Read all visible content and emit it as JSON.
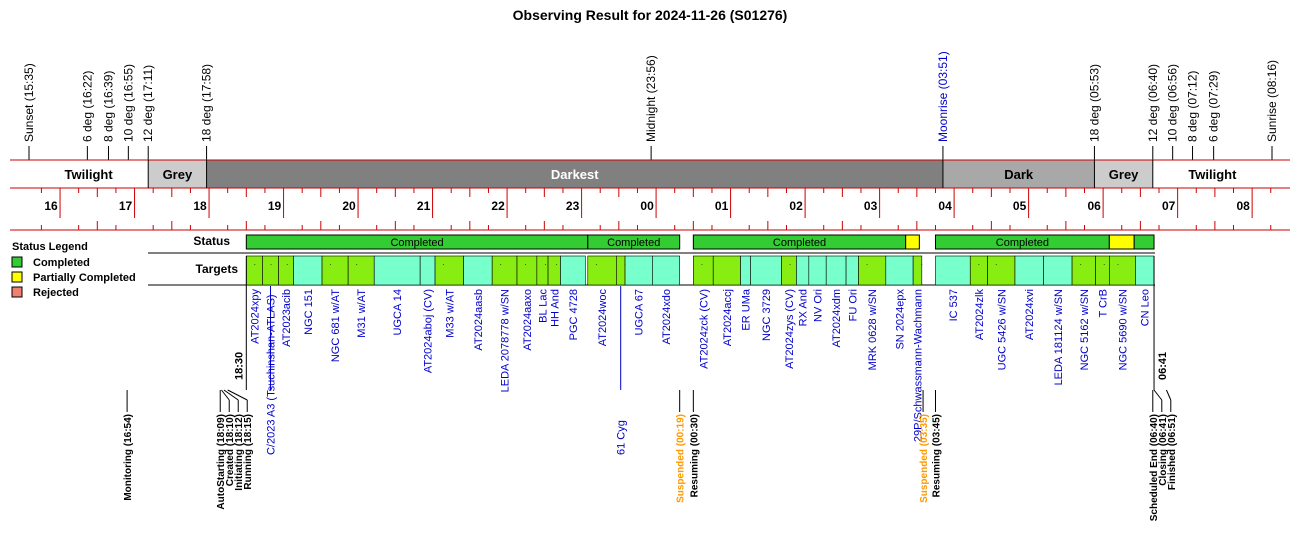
{
  "title": "Observing Result for 2024-11-26 (S01276)",
  "chart_data": {
    "type": "timeline",
    "title": "Observing Result for 2024-11-26 (S01276)",
    "x_axis": {
      "unit": "UT hour",
      "min": "15:35",
      "max": "08:16",
      "tick_labels": [
        "16",
        "17",
        "18",
        "19",
        "20",
        "21",
        "22",
        "23",
        "00",
        "01",
        "02",
        "03",
        "04",
        "05",
        "06",
        "07",
        "08"
      ]
    },
    "twilight_events": [
      {
        "label": "Sunset (15:35)",
        "time": "15:35"
      },
      {
        "label": "6 deg (16:22)",
        "time": "16:22"
      },
      {
        "label": "8 deg (16:39)",
        "time": "16:39"
      },
      {
        "label": "10 deg (16:55)",
        "time": "16:55"
      },
      {
        "label": "12 deg (17:11)",
        "time": "17:11"
      },
      {
        "label": "18 deg (17:58)",
        "time": "17:58"
      },
      {
        "label": "Midnight (23:56)",
        "time": "23:56"
      },
      {
        "label": "Moonrise (03:51)",
        "time": "03:51",
        "color": "#0000cc"
      },
      {
        "label": "18 deg (05:53)",
        "time": "05:53"
      },
      {
        "label": "12 deg (06:40)",
        "time": "06:40"
      },
      {
        "label": "10 deg (06:56)",
        "time": "06:56"
      },
      {
        "label": "8 deg (07:12)",
        "time": "07:12"
      },
      {
        "label": "6 deg (07:29)",
        "time": "07:29"
      },
      {
        "label": "Sunrise (08:16)",
        "time": "08:16"
      }
    ],
    "sky_bands": [
      {
        "label": "Twilight",
        "start": "15:35",
        "end": "17:11",
        "color": "#ffffff",
        "text_color": "#000000"
      },
      {
        "label": "Grey",
        "start": "17:11",
        "end": "17:58",
        "color": "#cccccc",
        "text_color": "#000000"
      },
      {
        "label": "Darkest",
        "start": "17:58",
        "end": "03:51",
        "color": "#808080",
        "text_color": "#ffffff"
      },
      {
        "label": "Dark",
        "start": "03:51",
        "end": "05:53",
        "color": "#a8a8a8",
        "text_color": "#000000"
      },
      {
        "label": "Grey",
        "start": "05:53",
        "end": "06:40",
        "color": "#cccccc",
        "text_color": "#000000"
      },
      {
        "label": "Twilight",
        "start": "06:40",
        "end": "08:16",
        "color": "#ffffff",
        "text_color": "#000000"
      }
    ],
    "status_legend": {
      "title": "Status Legend",
      "items": [
        {
          "label": "Completed",
          "color": "#33cc33"
        },
        {
          "label": "Partially Completed",
          "color": "#ffff00"
        },
        {
          "label": "Rejected",
          "color": "#f08070"
        }
      ]
    },
    "row_labels": {
      "status": "Status",
      "targets": "Targets"
    },
    "status_blocks": [
      {
        "label": "Completed",
        "start": "18:30",
        "end": "23:05",
        "status": "completed"
      },
      {
        "label": "Completed",
        "start": "23:05",
        "end": "00:19",
        "status": "completed"
      },
      {
        "label": "Completed",
        "start": "00:30",
        "end": "03:21",
        "status": "completed"
      },
      {
        "label": "",
        "start": "03:21",
        "end": "03:32",
        "status": "partial"
      },
      {
        "label": "Completed",
        "start": "03:45",
        "end": "06:05",
        "status": "completed"
      },
      {
        "label": "",
        "start": "06:05",
        "end": "06:25",
        "status": "partial"
      },
      {
        "label": "",
        "start": "06:25",
        "end": "06:41",
        "status": "completed"
      }
    ],
    "targets": [
      {
        "name": "AT2024xpy",
        "start": "18:30",
        "end": "18:43",
        "style": "lime",
        "mark": true,
        "color": "#0000cc"
      },
      {
        "name": "C/2023 A3 (Tsuchinshan-ATLAS)",
        "start": "18:43",
        "end": "18:56",
        "style": "lime",
        "mark": true,
        "color": "#0000cc",
        "below": true
      },
      {
        "name": "AT2023acib",
        "start": "18:56",
        "end": "19:08",
        "style": "lime",
        "mark": true,
        "color": "#0000cc"
      },
      {
        "name": "NGC 151",
        "start": "19:08",
        "end": "19:31",
        "style": "aqua",
        "mark": false,
        "color": "#0000cc"
      },
      {
        "name": "NGC 681 w/AT",
        "start": "19:31",
        "end": "19:52",
        "style": "lime",
        "mark": true,
        "color": "#0000cc"
      },
      {
        "name": "M31 w/AT",
        "start": "19:52",
        "end": "20:13",
        "style": "lime",
        "mark": true,
        "color": "#0000cc"
      },
      {
        "name": "UGCA 14",
        "start": "20:13",
        "end": "20:50",
        "style": "aqua",
        "mark": false,
        "color": "#0000cc"
      },
      {
        "name": "AT2024aboj (CV)",
        "start": "20:50",
        "end": "21:02",
        "style": "aqua",
        "mark": false,
        "color": "#0000cc"
      },
      {
        "name": "M33 w/AT",
        "start": "21:02",
        "end": "21:25",
        "style": "lime",
        "mark": true,
        "color": "#0000cc"
      },
      {
        "name": "AT2024aasb",
        "start": "21:25",
        "end": "21:48",
        "style": "aqua",
        "mark": false,
        "color": "#0000cc"
      },
      {
        "name": "LEDA 2078778 w/SN",
        "start": "21:48",
        "end": "22:08",
        "style": "lime",
        "mark": true,
        "color": "#0000cc"
      },
      {
        "name": "AT2024aaxo",
        "start": "22:08",
        "end": "22:24",
        "style": "lime",
        "mark": true,
        "color": "#0000cc"
      },
      {
        "name": "BL Lac",
        "start": "22:24",
        "end": "22:33",
        "style": "lime",
        "mark": true,
        "color": "#0000cc"
      },
      {
        "name": "HH And",
        "start": "22:33",
        "end": "22:43",
        "style": "lime",
        "mark": true,
        "color": "#0000cc"
      },
      {
        "name": "PGC 4728",
        "start": "22:43",
        "end": "23:03",
        "style": "aqua",
        "mark": false,
        "color": "#0000cc"
      },
      {
        "name": "AT2024woc",
        "start": "23:05",
        "end": "23:28",
        "style": "lime",
        "mark": true,
        "color": "#0000cc"
      },
      {
        "name": "61 Cyg",
        "start": "23:28",
        "end": "23:35",
        "style": "lime",
        "mark": true,
        "color": "#0000cc",
        "below": true
      },
      {
        "name": "UGCA 67",
        "start": "23:35",
        "end": "23:57",
        "style": "aqua",
        "mark": false,
        "color": "#0000cc"
      },
      {
        "name": "AT2024xdo",
        "start": "23:57",
        "end": "00:19",
        "style": "aqua",
        "mark": false,
        "color": "#0000cc"
      },
      {
        "name": "AT2024zck (CV)",
        "start": "00:30",
        "end": "00:46",
        "style": "lime",
        "mark": true,
        "color": "#0000cc"
      },
      {
        "name": "AT2024accj",
        "start": "00:46",
        "end": "01:08",
        "style": "lime",
        "mark": false,
        "color": "#0000cc"
      },
      {
        "name": "ER UMa",
        "start": "01:08",
        "end": "01:16",
        "style": "aqua",
        "mark": false,
        "color": "#0000cc"
      },
      {
        "name": "NGC 3729",
        "start": "01:16",
        "end": "01:41",
        "style": "aqua",
        "mark": false,
        "color": "#0000cc"
      },
      {
        "name": "AT2024zys (CV)",
        "start": "01:41",
        "end": "01:53",
        "style": "lime",
        "mark": true,
        "color": "#0000cc"
      },
      {
        "name": "RX And",
        "start": "01:53",
        "end": "02:03",
        "style": "aqua",
        "mark": false,
        "color": "#0000cc"
      },
      {
        "name": "NV Ori",
        "start": "02:03",
        "end": "02:17",
        "style": "aqua",
        "mark": false,
        "color": "#0000cc"
      },
      {
        "name": "AT2024xdm",
        "start": "02:17",
        "end": "02:33",
        "style": "aqua",
        "mark": false,
        "color": "#0000cc"
      },
      {
        "name": "FU Ori",
        "start": "02:33",
        "end": "02:43",
        "style": "aqua",
        "mark": false,
        "color": "#0000cc"
      },
      {
        "name": "MRK 0628 w/SN",
        "start": "02:43",
        "end": "03:05",
        "style": "lime",
        "mark": true,
        "color": "#0000cc"
      },
      {
        "name": "SN 2024epx",
        "start": "03:05",
        "end": "03:27",
        "style": "aqua",
        "mark": false,
        "color": "#0000cc"
      },
      {
        "name": "29P/Schwassmann-Wachmann",
        "start": "03:27",
        "end": "03:34",
        "style": "lime",
        "mark": true,
        "color": "#0000cc"
      },
      {
        "name": "IC 537",
        "start": "03:45",
        "end": "04:13",
        "style": "aqua",
        "mark": false,
        "color": "#0000cc"
      },
      {
        "name": "AT2024zlk",
        "start": "04:13",
        "end": "04:27",
        "style": "lime",
        "mark": true,
        "color": "#0000cc"
      },
      {
        "name": "UGC 5426 w/SN",
        "start": "04:27",
        "end": "04:49",
        "style": "lime",
        "mark": true,
        "color": "#0000cc"
      },
      {
        "name": "AT2024xvi",
        "start": "04:49",
        "end": "05:12",
        "style": "aqua",
        "mark": false,
        "color": "#0000cc"
      },
      {
        "name": "LEDA 181124 w/SN",
        "start": "05:12",
        "end": "05:35",
        "style": "aqua",
        "mark": false,
        "color": "#0000cc"
      },
      {
        "name": "NGC 5162 w/SN",
        "start": "05:35",
        "end": "05:54",
        "style": "lime",
        "mark": true,
        "color": "#0000cc"
      },
      {
        "name": "T CrB",
        "start": "05:54",
        "end": "06:05",
        "style": "lime",
        "mark": true,
        "color": "#0000cc"
      },
      {
        "name": "NGC 5690 w/SN",
        "start": "06:05",
        "end": "06:26",
        "style": "lime",
        "mark": true,
        "color": "#0000cc"
      },
      {
        "name": "CN Leo",
        "start": "06:26",
        "end": "06:41",
        "style": "aqua",
        "mark": false,
        "color": "#0000cc"
      }
    ],
    "start_label": "18:30",
    "end_label": "06:41",
    "events": [
      {
        "label": "Monitoring (16:54)",
        "time": "16:54",
        "color": "#000000"
      },
      {
        "label": "AutoStarting (18:09)",
        "time": "18:09",
        "color": "#000000"
      },
      {
        "label": "Created (18:10)",
        "time": "18:10",
        "color": "#000000"
      },
      {
        "label": "Initiating (18:12)",
        "time": "18:12",
        "color": "#000000"
      },
      {
        "label": "Running (18:15)",
        "time": "18:15",
        "color": "#000000"
      },
      {
        "label": "Suspended (00:19)",
        "time": "00:19",
        "color": "#ff9900"
      },
      {
        "label": "Resuming (00:30)",
        "time": "00:30",
        "color": "#000000"
      },
      {
        "label": "Suspended (03:35)",
        "time": "03:35",
        "color": "#ff9900"
      },
      {
        "label": "Resuming (03:45)",
        "time": "03:45",
        "color": "#000000"
      },
      {
        "label": "Scheduled End (06:40)",
        "time": "06:40",
        "color": "#000000"
      },
      {
        "label": "Closing (06:41)",
        "time": "06:41",
        "color": "#000000"
      },
      {
        "label": "Finished (06:51)",
        "time": "06:51",
        "color": "#000000"
      }
    ],
    "colors": {
      "completed": "#33cc33",
      "partial": "#ffff00",
      "lime": "#88ee11",
      "aqua": "#77ffcc",
      "axis": "#cc0000"
    }
  }
}
